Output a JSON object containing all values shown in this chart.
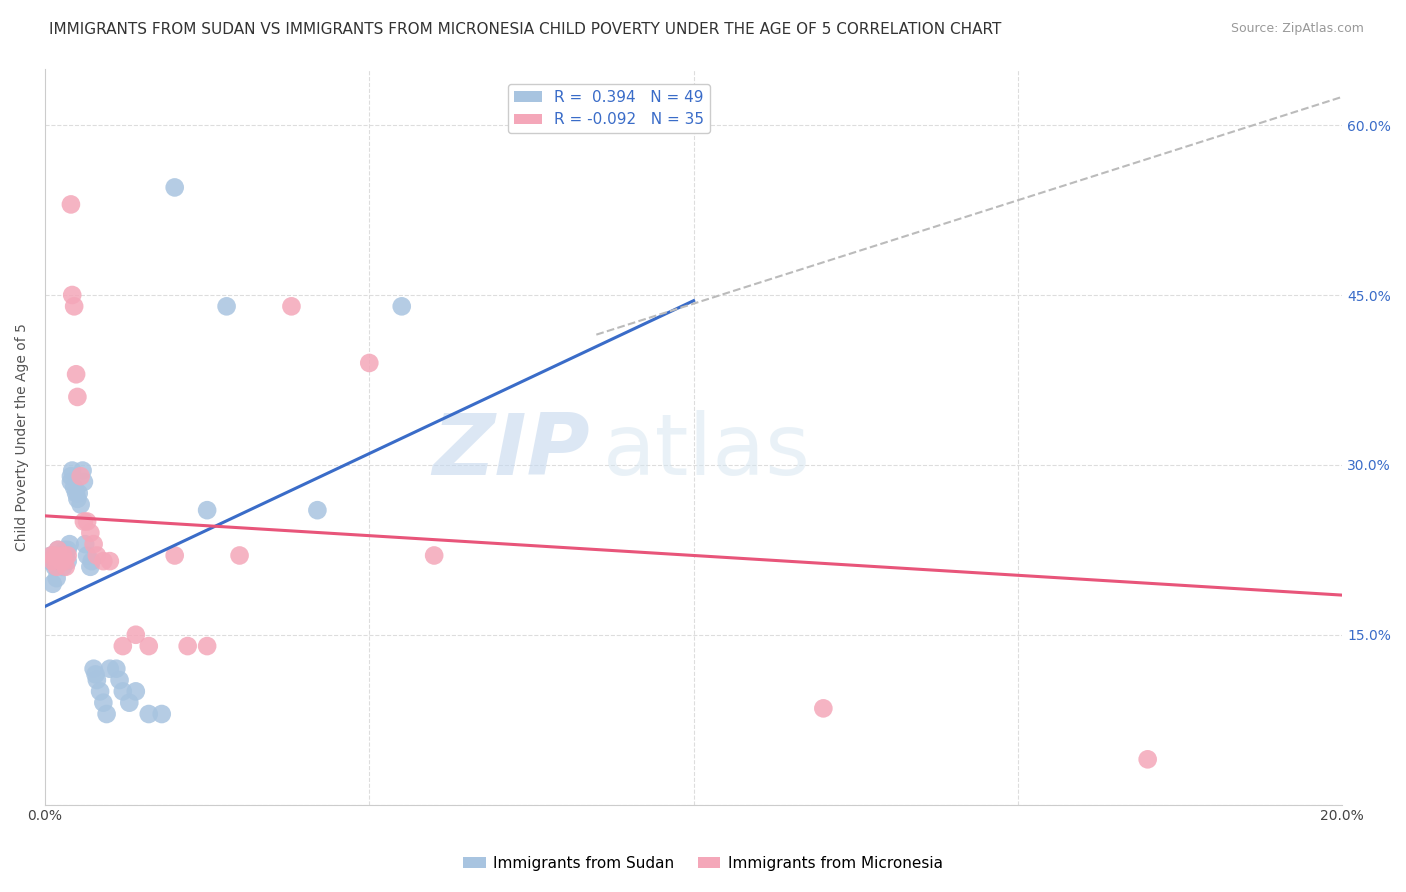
{
  "title": "IMMIGRANTS FROM SUDAN VS IMMIGRANTS FROM MICRONESIA CHILD POVERTY UNDER THE AGE OF 5 CORRELATION CHART",
  "source": "Source: ZipAtlas.com",
  "ylabel": "Child Poverty Under the Age of 5",
  "xlim": [
    0,
    0.2
  ],
  "ylim": [
    0,
    0.65
  ],
  "xticks": [
    0.0,
    0.05,
    0.1,
    0.15,
    0.2
  ],
  "xticklabels": [
    "0.0%",
    "",
    "",
    "",
    "20.0%"
  ],
  "yticks": [
    0.0,
    0.15,
    0.3,
    0.45,
    0.6
  ],
  "right_yticklabels": [
    "",
    "15.0%",
    "30.0%",
    "45.0%",
    "60.0%"
  ],
  "sudan_color": "#a8c4e0",
  "micronesia_color": "#f4a7b9",
  "sudan_line_color": "#3a6cc8",
  "micronesia_line_color": "#e8557a",
  "dashed_line_color": "#bbbbbb",
  "legend_label_sudan": "Immigrants from Sudan",
  "legend_label_micronesia": "Immigrants from Micronesia",
  "r_sudan": "0.394",
  "n_sudan": 49,
  "r_micronesia": "-0.092",
  "n_micronesia": 35,
  "watermark_zip": "ZIP",
  "watermark_atlas": "atlas",
  "background_color": "#ffffff",
  "grid_color": "#dddddd",
  "sudan_x": [
    0.0008,
    0.001,
    0.0012,
    0.0015,
    0.0018,
    0.002,
    0.0022,
    0.0025,
    0.0025,
    0.0028,
    0.003,
    0.003,
    0.0032,
    0.0035,
    0.0035,
    0.0038,
    0.004,
    0.004,
    0.0042,
    0.0045,
    0.0048,
    0.005,
    0.0052,
    0.0055,
    0.0058,
    0.006,
    0.0062,
    0.0065,
    0.007,
    0.0072,
    0.0075,
    0.0078,
    0.008,
    0.0085,
    0.009,
    0.0095,
    0.01,
    0.011,
    0.0115,
    0.012,
    0.013,
    0.014,
    0.016,
    0.018,
    0.02,
    0.025,
    0.028,
    0.042,
    0.055
  ],
  "sudan_y": [
    0.215,
    0.22,
    0.195,
    0.21,
    0.2,
    0.225,
    0.218,
    0.215,
    0.22,
    0.21,
    0.225,
    0.215,
    0.22,
    0.225,
    0.215,
    0.23,
    0.285,
    0.29,
    0.295,
    0.28,
    0.275,
    0.27,
    0.275,
    0.265,
    0.295,
    0.285,
    0.23,
    0.22,
    0.21,
    0.215,
    0.12,
    0.115,
    0.11,
    0.1,
    0.09,
    0.08,
    0.12,
    0.12,
    0.11,
    0.1,
    0.09,
    0.1,
    0.08,
    0.08,
    0.545,
    0.26,
    0.44,
    0.26,
    0.44
  ],
  "micronesia_x": [
    0.001,
    0.0012,
    0.0015,
    0.0018,
    0.002,
    0.0025,
    0.0028,
    0.003,
    0.0032,
    0.0035,
    0.004,
    0.0042,
    0.0045,
    0.0048,
    0.005,
    0.0055,
    0.006,
    0.0065,
    0.007,
    0.0075,
    0.008,
    0.009,
    0.01,
    0.012,
    0.014,
    0.016,
    0.02,
    0.022,
    0.025,
    0.03,
    0.038,
    0.05,
    0.06,
    0.12,
    0.17
  ],
  "micronesia_y": [
    0.22,
    0.215,
    0.22,
    0.21,
    0.225,
    0.215,
    0.22,
    0.215,
    0.21,
    0.22,
    0.53,
    0.45,
    0.44,
    0.38,
    0.36,
    0.29,
    0.25,
    0.25,
    0.24,
    0.23,
    0.22,
    0.215,
    0.215,
    0.14,
    0.15,
    0.14,
    0.22,
    0.14,
    0.14,
    0.22,
    0.44,
    0.39,
    0.22,
    0.085,
    0.04
  ],
  "title_fontsize": 11,
  "axis_label_fontsize": 10,
  "tick_fontsize": 10,
  "blue_line_x0": 0.0,
  "blue_line_y0": 0.175,
  "blue_line_x1": 0.1,
  "blue_line_y1": 0.445,
  "pink_line_x0": 0.0,
  "pink_line_y0": 0.255,
  "pink_line_x1": 0.2,
  "pink_line_y1": 0.185,
  "dash_line_x0": 0.085,
  "dash_line_y0": 0.415,
  "dash_line_x1": 0.2,
  "dash_line_y1": 0.625
}
